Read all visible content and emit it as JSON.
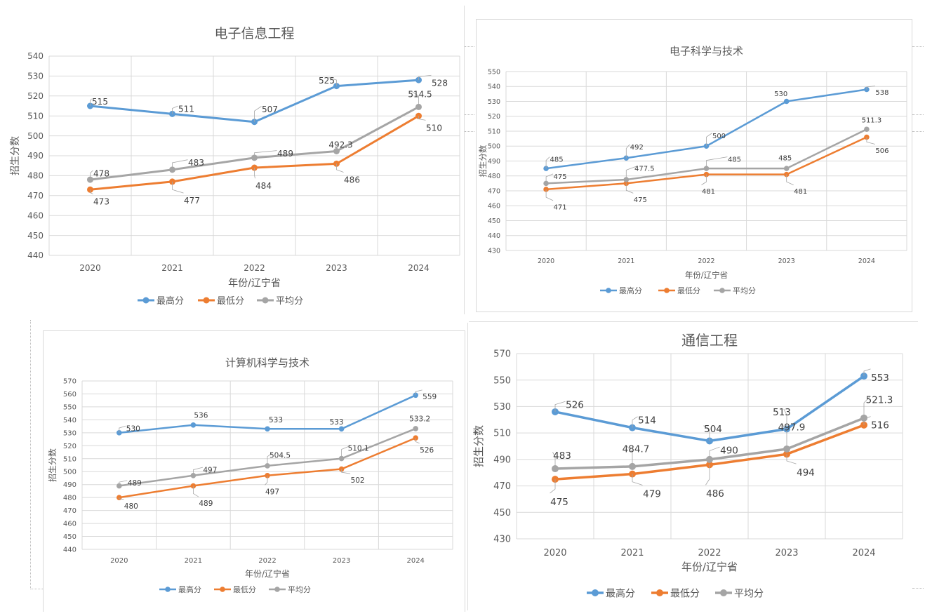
{
  "chart_data": [
    {
      "type": "line",
      "title": "电子信息工程",
      "xlabel": "年份/辽宁省",
      "ylabel": "招生分数",
      "categories": [
        "2020",
        "2021",
        "2022",
        "2023",
        "2024"
      ],
      "ylim": [
        440,
        540
      ],
      "ystep": 10,
      "grid": true,
      "legend_position": "bottom",
      "series": [
        {
          "name": "最高分",
          "color": "#5b9bd5",
          "values": [
            515,
            511,
            507,
            525,
            528
          ],
          "labels": [
            "515",
            "511",
            "507",
            "525",
            "528"
          ]
        },
        {
          "name": "最低分",
          "color": "#ed7d31",
          "values": [
            473,
            477,
            484,
            486,
            510
          ],
          "labels": [
            "473",
            "477",
            "484",
            "486",
            "510"
          ]
        },
        {
          "name": "平均分",
          "color": "#a5a5a5",
          "values": [
            478,
            483,
            489,
            492.3,
            514.5
          ],
          "labels": [
            "478",
            "483",
            "489",
            "492.3",
            "514.5"
          ]
        }
      ]
    },
    {
      "type": "line",
      "title": "电子科学与技术",
      "xlabel": "年份/辽宁省",
      "ylabel": "招生分数",
      "categories": [
        "2020",
        "2021",
        "2022",
        "2023",
        "2024"
      ],
      "ylim": [
        430,
        550
      ],
      "ystep": 10,
      "grid": true,
      "legend_position": "bottom",
      "series": [
        {
          "name": "最高分",
          "color": "#5b9bd5",
          "values": [
            485,
            492,
            500,
            530,
            538
          ],
          "labels": [
            "485",
            "492",
            "500",
            "530",
            "538"
          ]
        },
        {
          "name": "最低分",
          "color": "#ed7d31",
          "values": [
            471,
            475,
            481,
            481,
            506
          ],
          "labels": [
            "471",
            "475",
            "481",
            "481",
            "506"
          ]
        },
        {
          "name": "平均分",
          "color": "#a5a5a5",
          "values": [
            475,
            477.5,
            485,
            485,
            511.3
          ],
          "labels": [
            "475",
            "477.5",
            "485",
            "485",
            "511.3"
          ]
        }
      ]
    },
    {
      "type": "line",
      "title": "计算机科学与技术",
      "xlabel": "年份/辽宁省",
      "ylabel": "招生分数",
      "categories": [
        "2020",
        "2021",
        "2022",
        "2023",
        "2024"
      ],
      "ylim": [
        440,
        570
      ],
      "ystep": 10,
      "grid": true,
      "legend_position": "bottom",
      "series": [
        {
          "name": "最高分",
          "color": "#5b9bd5",
          "values": [
            530,
            536,
            533,
            533,
            559
          ],
          "labels": [
            "530",
            "536",
            "533",
            "533",
            "559"
          ]
        },
        {
          "name": "最低分",
          "color": "#ed7d31",
          "values": [
            480,
            489,
            497,
            502,
            526
          ],
          "labels": [
            "480",
            "489",
            "497",
            "502",
            "526"
          ]
        },
        {
          "name": "平均分",
          "color": "#a5a5a5",
          "values": [
            489,
            497,
            504.5,
            510.1,
            533.2
          ],
          "labels": [
            "489",
            "497",
            "504.5",
            "510.1",
            "533.2"
          ]
        }
      ]
    },
    {
      "type": "line",
      "title": "通信工程",
      "xlabel": "年份/辽宁省",
      "ylabel": "招生分数",
      "categories": [
        "2020",
        "2021",
        "2022",
        "2023",
        "2024"
      ],
      "ylim": [
        430,
        570
      ],
      "ystep": 20,
      "grid": true,
      "legend_position": "bottom",
      "series": [
        {
          "name": "最高分",
          "color": "#5b9bd5",
          "values": [
            526,
            514,
            504,
            513,
            553
          ],
          "labels": [
            "526",
            "514",
            "504",
            "513",
            "553"
          ]
        },
        {
          "name": "最低分",
          "color": "#ed7d31",
          "values": [
            475,
            479,
            486,
            494,
            516
          ],
          "labels": [
            "475",
            "479",
            "486",
            "494",
            "516"
          ]
        },
        {
          "name": "平均分",
          "color": "#a5a5a5",
          "values": [
            483,
            484.7,
            490,
            497.9,
            521.3
          ],
          "labels": [
            "483",
            "484.7",
            "490",
            "497.9",
            "521.3"
          ]
        }
      ]
    }
  ]
}
